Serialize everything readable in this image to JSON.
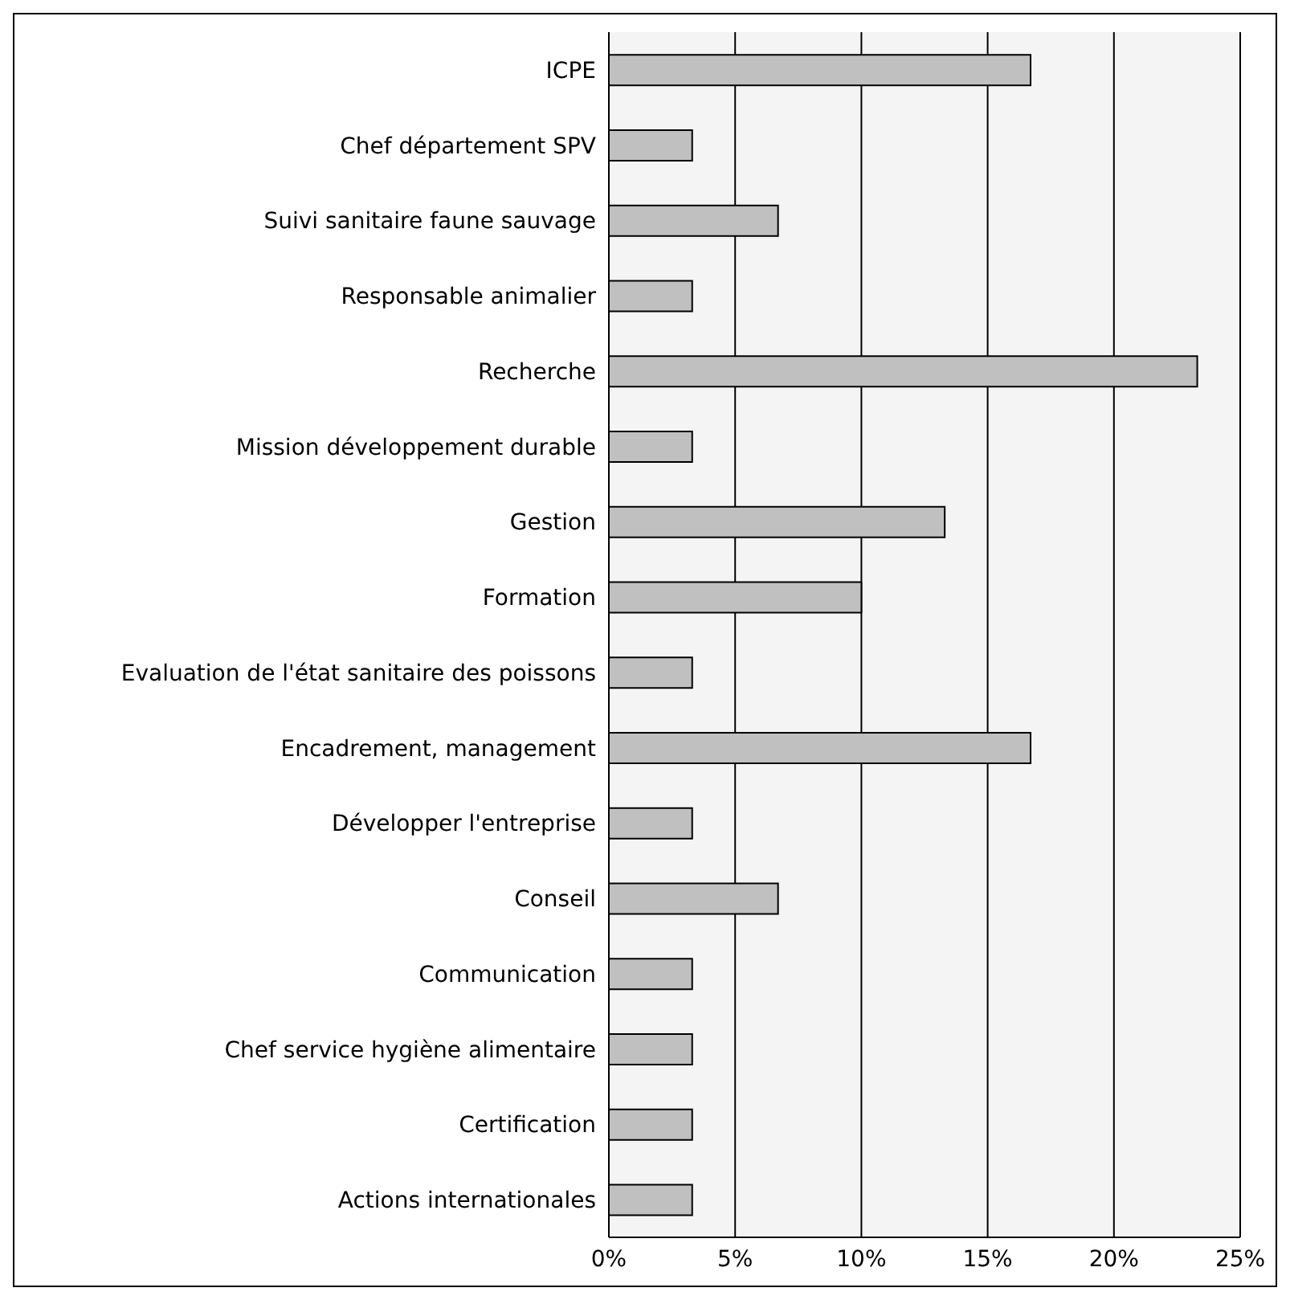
{
  "chart_data": {
    "type": "bar",
    "orientation": "horizontal",
    "categories": [
      "ICPE",
      "Chef département SPV",
      "Suivi sanitaire faune sauvage",
      "Responsable animalier",
      "Recherche",
      "Mission développement durable",
      "Gestion",
      "Formation",
      "Evaluation de l'état sanitaire des poissons",
      "Encadrement, management",
      "Développer l'entreprise",
      "Conseil",
      "Communication",
      "Chef service hygiène alimentaire",
      "Certification",
      "Actions internationales"
    ],
    "values": [
      16.7,
      3.3,
      6.7,
      3.3,
      23.3,
      3.3,
      13.3,
      10,
      3.3,
      16.7,
      3.3,
      6.7,
      3.3,
      3.3,
      3.3,
      3.3
    ],
    "color": "#c0c0c0",
    "xlim": [
      0,
      25
    ],
    "xticks": [
      {
        "value": 0,
        "label": "0%"
      },
      {
        "value": 5,
        "label": "5%"
      },
      {
        "value": 10,
        "label": "10%"
      },
      {
        "value": 15,
        "label": "15%"
      },
      {
        "value": 20,
        "label": "20%"
      },
      {
        "value": 25,
        "label": "25%"
      }
    ],
    "grid": "x"
  }
}
